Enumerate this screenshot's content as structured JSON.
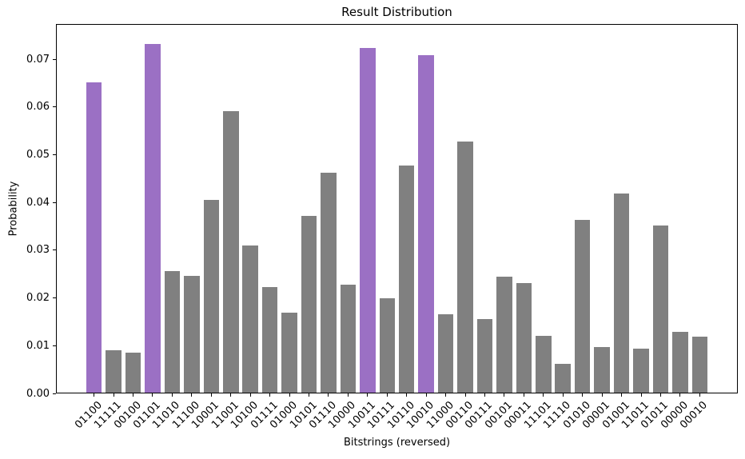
{
  "figure": {
    "title": "Result Distribution",
    "xlabel": "Bitstrings (reversed)",
    "ylabel": "Probability"
  },
  "chart_data": {
    "type": "bar",
    "title": "Result Distribution",
    "xlabel": "Bitstrings (reversed)",
    "ylabel": "Probability",
    "categories": [
      "01100",
      "11111",
      "00100",
      "01101",
      "11010",
      "11100",
      "10001",
      "11001",
      "10100",
      "01111",
      "01000",
      "10101",
      "01110",
      "10000",
      "10011",
      "10111",
      "10110",
      "10010",
      "11000",
      "00110",
      "00111",
      "00101",
      "00011",
      "11101",
      "11110",
      "01010",
      "00001",
      "01001",
      "11011",
      "01011",
      "00000",
      "00010"
    ],
    "values": [
      0.0652,
      0.009,
      0.0086,
      0.0732,
      0.0257,
      0.0247,
      0.0405,
      0.0591,
      0.031,
      0.0222,
      0.017,
      0.0372,
      0.0462,
      0.0228,
      0.0724,
      0.0199,
      0.0478,
      0.0709,
      0.0166,
      0.0527,
      0.0156,
      0.0245,
      0.0232,
      0.0121,
      0.0062,
      0.0364,
      0.0097,
      0.0419,
      0.0094,
      0.0351,
      0.0129,
      0.0119
    ],
    "highlighted_categories": [
      "01100",
      "01101",
      "10011",
      "10010"
    ],
    "bar_color": "#808080",
    "highlight_color": "#9b70c4",
    "ylim": [
      0,
      0.0774
    ],
    "yticks": [
      0.0,
      0.01,
      0.02,
      0.03,
      0.04,
      0.05,
      0.06,
      0.07
    ],
    "ytick_format_decimals": 2,
    "xtick_rotation_deg": 45,
    "grid": false,
    "legend_visible": false
  }
}
